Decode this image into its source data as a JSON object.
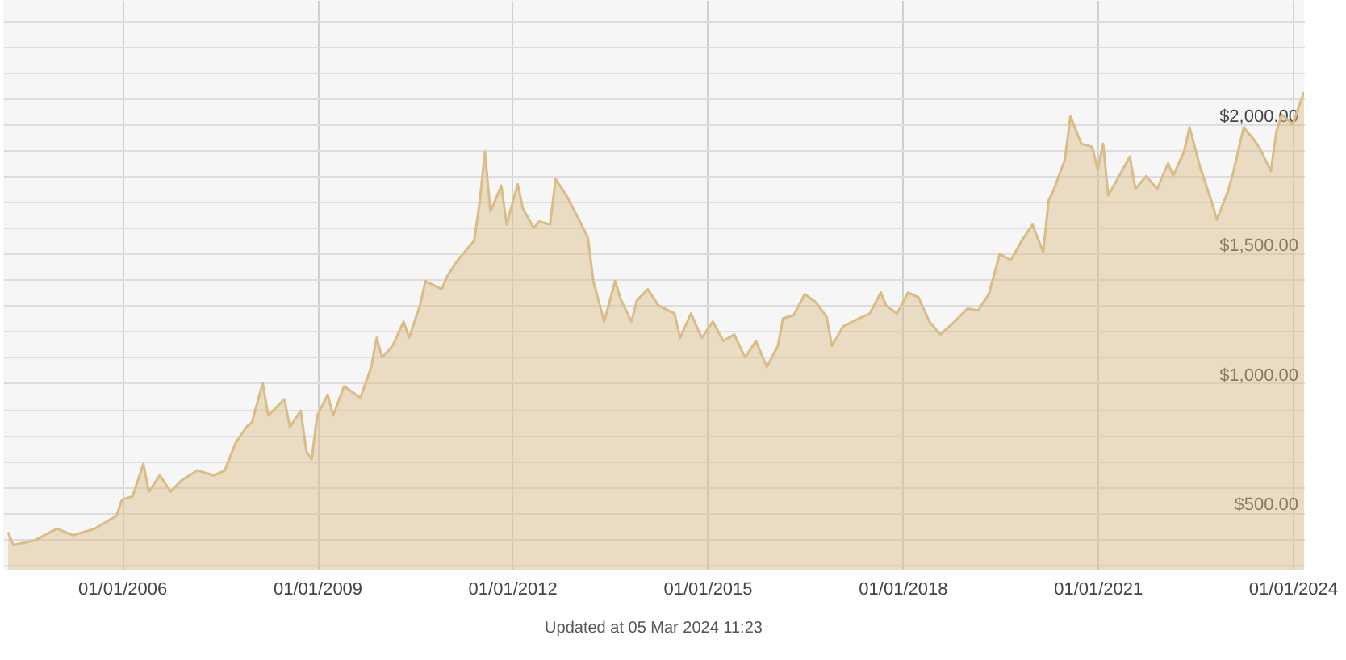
{
  "chart_data": {
    "type": "area",
    "annotations": [
      "Updated at 05 Mar 2024 11:23"
    ],
    "x": [
      "2004-04",
      "2004-05",
      "2004-09",
      "2005-01",
      "2005-04",
      "2005-08",
      "2005-12",
      "2006-01",
      "2006-03",
      "2006-05",
      "2006-06",
      "2006-08",
      "2006-10",
      "2006-12",
      "2007-03",
      "2007-06",
      "2007-08",
      "2007-10",
      "2007-12",
      "2008-01",
      "2008-03",
      "2008-04",
      "2008-07",
      "2008-08",
      "2008-10",
      "2008-11",
      "2008-12",
      "2009-01",
      "2009-03",
      "2009-04",
      "2009-06",
      "2009-09",
      "2009-11",
      "2009-12",
      "2010-01",
      "2010-03",
      "2010-05",
      "2010-06",
      "2010-08",
      "2010-09",
      "2010-12",
      "2011-01",
      "2011-03",
      "2011-04",
      "2011-06",
      "2011-07",
      "2011-08",
      "2011-09",
      "2011-11",
      "2011-12",
      "2012-02",
      "2012-03",
      "2012-05",
      "2012-06",
      "2012-08",
      "2012-09",
      "2012-11",
      "2013-01",
      "2013-03",
      "2013-04",
      "2013-06",
      "2013-08",
      "2013-09",
      "2013-11",
      "2013-12",
      "2014-02",
      "2014-04",
      "2014-07",
      "2014-08",
      "2014-10",
      "2014-12",
      "2015-02",
      "2015-04",
      "2015-06",
      "2015-08",
      "2015-10",
      "2015-12",
      "2016-02",
      "2016-03",
      "2016-05",
      "2016-07",
      "2016-09",
      "2016-11",
      "2016-12",
      "2017-02",
      "2017-05",
      "2017-07",
      "2017-09",
      "2017-10",
      "2017-12",
      "2018-02",
      "2018-04",
      "2018-06",
      "2018-08",
      "2018-10",
      "2019-01",
      "2019-03",
      "2019-05",
      "2019-07",
      "2019-09",
      "2019-11",
      "2020-01",
      "2020-03",
      "2020-04",
      "2020-05",
      "2020-07",
      "2020-08",
      "2020-10",
      "2020-12",
      "2021-01",
      "2021-02",
      "2021-03",
      "2021-05",
      "2021-07",
      "2021-08",
      "2021-10",
      "2021-12",
      "2022-02",
      "2022-03",
      "2022-05",
      "2022-06",
      "2022-08",
      "2022-10",
      "2022-11",
      "2023-01",
      "2023-02",
      "2023-04",
      "2023-06",
      "2023-07",
      "2023-09",
      "2023-10",
      "2023-11",
      "2024-01",
      "2024-03-05"
    ],
    "series": [
      {
        "color": "#d9bc86",
        "values": [
          425,
          375,
          394,
          438,
          413,
          438,
          488,
          550,
          563,
          688,
          581,
          644,
          581,
          625,
          663,
          644,
          663,
          769,
          831,
          850,
          1000,
          875,
          938,
          831,
          894,
          738,
          706,
          875,
          956,
          875,
          988,
          944,
          1063,
          1175,
          1100,
          1144,
          1238,
          1175,
          1300,
          1394,
          1363,
          1413,
          1475,
          1500,
          1550,
          1688,
          1894,
          1663,
          1763,
          1613,
          1769,
          1675,
          1600,
          1625,
          1613,
          1788,
          1725,
          1644,
          1563,
          1394,
          1238,
          1394,
          1325,
          1238,
          1319,
          1363,
          1300,
          1269,
          1175,
          1269,
          1175,
          1238,
          1163,
          1188,
          1100,
          1163,
          1063,
          1144,
          1250,
          1263,
          1344,
          1313,
          1256,
          1144,
          1219,
          1250,
          1269,
          1350,
          1300,
          1269,
          1350,
          1331,
          1238,
          1188,
          1225,
          1288,
          1281,
          1344,
          1500,
          1475,
          1550,
          1613,
          1506,
          1706,
          1750,
          1863,
          2031,
          1925,
          1913,
          1825,
          1925,
          1725,
          1800,
          1875,
          1750,
          1800,
          1750,
          1850,
          1800,
          1894,
          1988,
          1831,
          1706,
          1631,
          1738,
          1813,
          1988,
          1938,
          1906,
          1819,
          1969,
          2038,
          2000,
          2125
        ]
      }
    ],
    "xlim": [
      "2004-03-05",
      "2024-03-05"
    ],
    "xticks": [
      {
        "value": "2006-01-01",
        "label": "01/01/2006"
      },
      {
        "value": "2009-01-01",
        "label": "01/01/2009"
      },
      {
        "value": "2012-01-01",
        "label": "01/01/2012"
      },
      {
        "value": "2015-01-01",
        "label": "01/01/2015"
      },
      {
        "value": "2018-01-01",
        "label": "01/01/2018"
      },
      {
        "value": "2021-01-01",
        "label": "01/01/2021"
      },
      {
        "value": "2024-01-01",
        "label": "01/01/2024"
      }
    ],
    "ylim": [
      280,
      2480
    ],
    "yticks": [
      {
        "value": 300,
        "label": null
      },
      {
        "value": 400,
        "label": null
      },
      {
        "value": 500,
        "label": "$500.00"
      },
      {
        "value": 600,
        "label": null
      },
      {
        "value": 700,
        "label": null
      },
      {
        "value": 800,
        "label": null
      },
      {
        "value": 900,
        "label": null
      },
      {
        "value": 1000,
        "label": "$1,000.00"
      },
      {
        "value": 1100,
        "label": null
      },
      {
        "value": 1200,
        "label": null
      },
      {
        "value": 1300,
        "label": null
      },
      {
        "value": 1400,
        "label": null
      },
      {
        "value": 1500,
        "label": "$1,500.00"
      },
      {
        "value": 1600,
        "label": null
      },
      {
        "value": 1700,
        "label": null
      },
      {
        "value": 1800,
        "label": null
      },
      {
        "value": 1900,
        "label": null
      },
      {
        "value": 2000,
        "label": "$2,000.00"
      },
      {
        "value": 2100,
        "label": null
      },
      {
        "value": 2200,
        "label": null
      },
      {
        "value": 2300,
        "label": null
      },
      {
        "value": 2400,
        "label": null
      }
    ],
    "grid": true,
    "marker": "none",
    "line_style": "solid"
  }
}
